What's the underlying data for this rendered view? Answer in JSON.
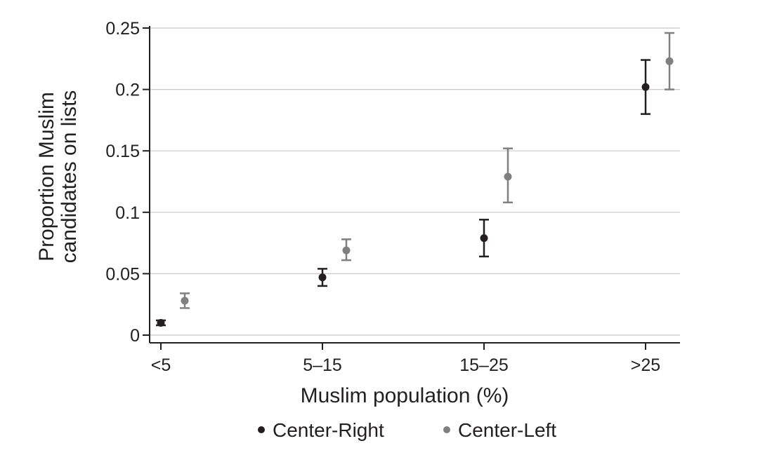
{
  "chart_data": {
    "type": "scatter",
    "title": "",
    "xlabel": "Muslim population (%)",
    "ylabel_lines": [
      "Proportion Muslim",
      "candidates on lists"
    ],
    "categories": [
      "<5",
      "5–15",
      "15–25",
      ">25"
    ],
    "ylim": [
      0,
      0.25
    ],
    "yticks": [
      0,
      0.05,
      0.1,
      0.15,
      0.2,
      0.25
    ],
    "ytick_labels": [
      "0",
      "0.05",
      "0.1",
      "0.15",
      "0.2",
      "0.25"
    ],
    "grid": true,
    "legend_position": "bottom",
    "series": [
      {
        "name": "Center-Right",
        "color": "#231f20",
        "values": [
          0.01,
          0.047,
          0.079,
          0.202
        ],
        "lower": [
          0.008,
          0.04,
          0.064,
          0.18
        ],
        "upper": [
          0.012,
          0.054,
          0.094,
          0.224
        ]
      },
      {
        "name": "Center-Left",
        "color": "#808080",
        "values": [
          0.028,
          0.069,
          0.129,
          0.223
        ],
        "lower": [
          0.022,
          0.061,
          0.108,
          0.2
        ],
        "upper": [
          0.034,
          0.078,
          0.152,
          0.246
        ]
      }
    ]
  }
}
